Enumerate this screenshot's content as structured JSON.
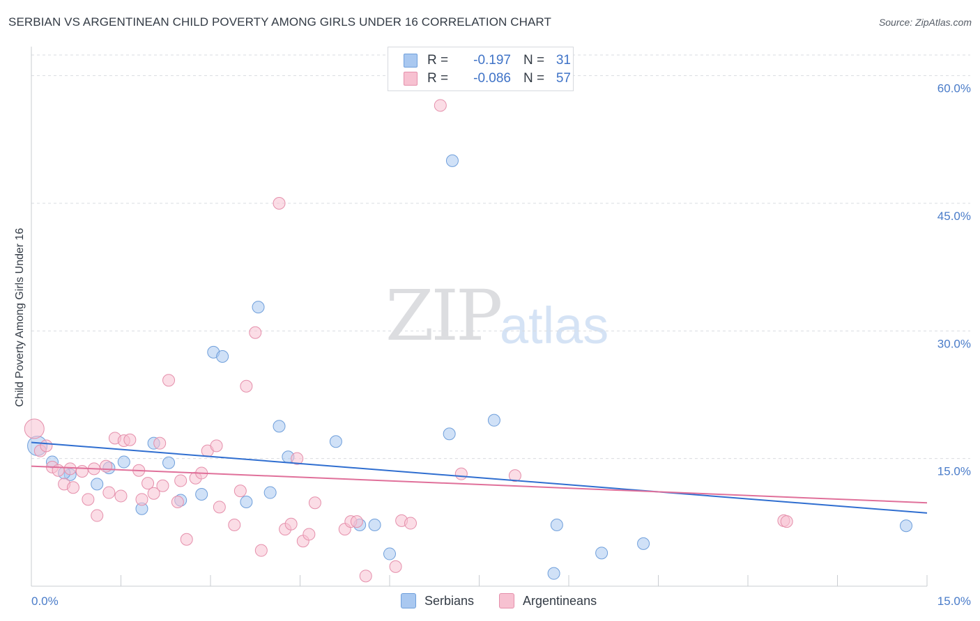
{
  "title": "SERBIAN VS ARGENTINEAN CHILD POVERTY AMONG GIRLS UNDER 16 CORRELATION CHART",
  "source": "Source: ZipAtlas.com",
  "watermark": {
    "zip": "ZIP",
    "atlas": "atlas"
  },
  "legend": {
    "rows": [
      {
        "r_label": "R =",
        "r_value": "-0.197",
        "n_label": "N =",
        "n_value": "31",
        "color": "#a9c8f0",
        "border": "#6f9fdb"
      },
      {
        "r_label": "R =",
        "r_value": "-0.086",
        "n_label": "N =",
        "n_value": "57",
        "color": "#f7c1d1",
        "border": "#e58fab"
      }
    ]
  },
  "bottom_legend": [
    {
      "label": "Serbians",
      "color": "#a9c8f0",
      "border": "#6f9fdb"
    },
    {
      "label": "Argentineans",
      "color": "#f7c1d1",
      "border": "#e58fab"
    }
  ],
  "chart_data": {
    "type": "scatter",
    "title": "SERBIAN VS ARGENTINEAN CHILD POVERTY AMONG GIRLS UNDER 16 CORRELATION CHART",
    "xlabel": "",
    "ylabel": "Child Poverty Among Girls Under 16",
    "xlim": [
      0,
      15
    ],
    "ylim": [
      0,
      63
    ],
    "x_tick_labels": [
      "0.0%",
      "15.0%"
    ],
    "y_ticks": [
      15,
      30,
      45,
      60
    ],
    "y_tick_labels": [
      "15.0%",
      "30.0%",
      "45.0%",
      "60.0%"
    ],
    "grid": true,
    "series": [
      {
        "name": "Serbians",
        "color": "#6f9fdb",
        "fill": "#a9c8f0",
        "trend": {
          "x": [
            0,
            15
          ],
          "y": [
            16.9,
            8.6
          ],
          "color": "#2f6ed0"
        },
        "points": [
          [
            0.1,
            16.5
          ],
          [
            0.35,
            14.6
          ],
          [
            0.65,
            13.1
          ],
          [
            0.55,
            13.3
          ],
          [
            1.1,
            12.0
          ],
          [
            1.3,
            13.9
          ],
          [
            1.55,
            14.6
          ],
          [
            1.85,
            9.1
          ],
          [
            2.05,
            16.8
          ],
          [
            2.3,
            14.5
          ],
          [
            2.5,
            10.1
          ],
          [
            2.85,
            10.8
          ],
          [
            3.05,
            27.5
          ],
          [
            3.2,
            27.0
          ],
          [
            3.6,
            9.9
          ],
          [
            3.8,
            32.8
          ],
          [
            4.0,
            11.0
          ],
          [
            4.15,
            18.8
          ],
          [
            4.3,
            15.2
          ],
          [
            5.1,
            17.0
          ],
          [
            5.5,
            7.2
          ],
          [
            5.75,
            7.2
          ],
          [
            6.0,
            3.8
          ],
          [
            7.0,
            17.9
          ],
          [
            7.05,
            50.0
          ],
          [
            7.75,
            19.5
          ],
          [
            8.75,
            1.5
          ],
          [
            8.8,
            7.2
          ],
          [
            9.55,
            3.9
          ],
          [
            10.25,
            5.0
          ],
          [
            14.65,
            7.1
          ]
        ]
      },
      {
        "name": "Argentineans",
        "color": "#e58fab",
        "fill": "#f7c1d1",
        "trend": {
          "x": [
            0,
            15
          ],
          "y": [
            14.1,
            9.8
          ],
          "color": "#e0709a"
        },
        "points": [
          [
            0.05,
            18.5
          ],
          [
            0.15,
            15.9
          ],
          [
            0.25,
            16.5
          ],
          [
            0.35,
            14.0
          ],
          [
            0.45,
            13.6
          ],
          [
            0.55,
            12.0
          ],
          [
            0.65,
            13.8
          ],
          [
            0.7,
            11.6
          ],
          [
            0.85,
            13.5
          ],
          [
            0.95,
            10.2
          ],
          [
            1.05,
            13.8
          ],
          [
            1.1,
            8.3
          ],
          [
            1.25,
            14.1
          ],
          [
            1.3,
            11.0
          ],
          [
            1.4,
            17.4
          ],
          [
            1.5,
            10.6
          ],
          [
            1.55,
            17.1
          ],
          [
            1.65,
            17.2
          ],
          [
            1.8,
            13.6
          ],
          [
            1.85,
            10.2
          ],
          [
            1.95,
            12.1
          ],
          [
            2.05,
            10.9
          ],
          [
            2.15,
            16.8
          ],
          [
            2.2,
            11.8
          ],
          [
            2.3,
            24.2
          ],
          [
            2.45,
            9.9
          ],
          [
            2.5,
            12.4
          ],
          [
            2.6,
            5.5
          ],
          [
            2.75,
            12.7
          ],
          [
            2.85,
            13.3
          ],
          [
            2.95,
            15.9
          ],
          [
            3.1,
            16.5
          ],
          [
            3.15,
            9.3
          ],
          [
            3.4,
            7.2
          ],
          [
            3.5,
            11.2
          ],
          [
            3.6,
            23.5
          ],
          [
            3.75,
            29.8
          ],
          [
            3.85,
            4.2
          ],
          [
            4.15,
            45.0
          ],
          [
            4.25,
            6.7
          ],
          [
            4.35,
            7.3
          ],
          [
            4.45,
            15.0
          ],
          [
            4.55,
            5.3
          ],
          [
            4.65,
            6.1
          ],
          [
            4.75,
            9.8
          ],
          [
            5.25,
            6.7
          ],
          [
            5.35,
            7.6
          ],
          [
            5.45,
            7.6
          ],
          [
            5.6,
            1.2
          ],
          [
            6.1,
            2.3
          ],
          [
            6.2,
            7.7
          ],
          [
            6.35,
            7.4
          ],
          [
            6.85,
            56.5
          ],
          [
            7.2,
            13.2
          ],
          [
            12.6,
            7.7
          ],
          [
            12.65,
            7.6
          ],
          [
            8.1,
            13.0
          ]
        ]
      }
    ]
  }
}
